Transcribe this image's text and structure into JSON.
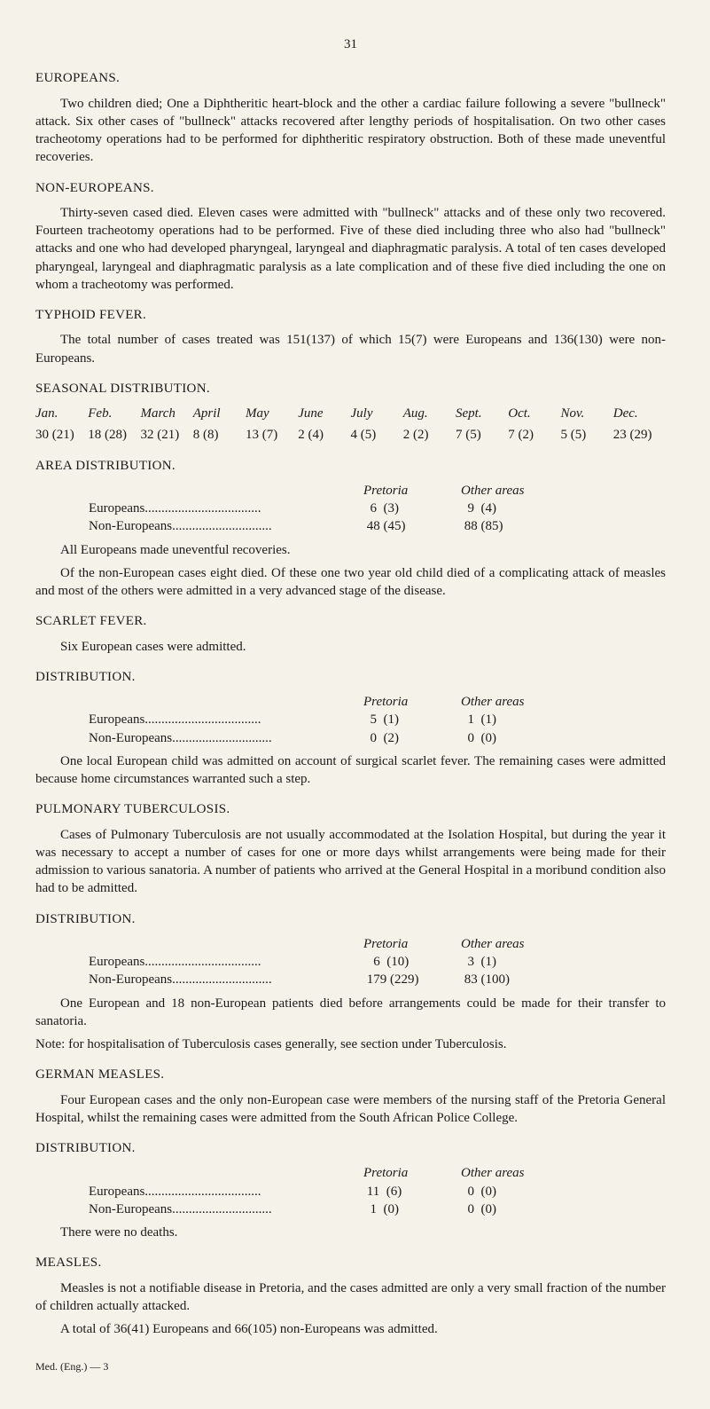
{
  "page_number": "31",
  "sections": {
    "europeans": {
      "head": "EUROPEANS.",
      "para": "Two children died; One a Diphtheritic heart-block and the other a cardiac failure following a severe \"bullneck\" attack. Six other cases of \"bullneck\" attacks recovered after lengthy periods of hospitalisation. On two other cases tracheotomy operations had to be performed for diphtheritic respiratory obstruction. Both of these made uneventful recoveries."
    },
    "non_europeans": {
      "head": "NON-EUROPEANS.",
      "para": "Thirty-seven cased died. Eleven cases were admitted with \"bullneck\" attacks and of these only two recovered. Fourteen tracheotomy operations had to be performed. Five of these died including three who also had \"bullneck\" attacks and one who had developed pharyngeal, laryngeal and diaphragmatic paralysis. A total of ten cases developed pharyngeal, laryngeal and diaphragmatic paralysis as a late complication and of these five died including the one on whom a tracheotomy was performed."
    },
    "typhoid": {
      "head": "TYPHOID FEVER.",
      "para": "The total number of cases treated was 151(137) of which 15(7) were Europeans and 136(130) were non-Europeans."
    },
    "seasonal": {
      "head": "SEASONAL DISTRIBUTION.",
      "months": [
        "Jan.",
        "Feb.",
        "March",
        "April",
        "May",
        "June",
        "July",
        "Aug.",
        "Sept.",
        "Oct.",
        "Nov.",
        "Dec."
      ],
      "values": [
        "30 (21)",
        "18 (28)",
        "32 (21)",
        "8  (8)",
        "13  (7)",
        "2  (4)",
        "4  (5)",
        "2  (2)",
        "7  (5)",
        "7  (2)",
        "5  (5)",
        "23 (29)"
      ]
    },
    "area": {
      "head": "AREA DISTRIBUTION.",
      "col_pretoria": "Pretoria",
      "col_other": "Other areas",
      "rows": [
        {
          "label": "Europeans...................................",
          "c1": "  6  (3)",
          "c2": "  9  (4)"
        },
        {
          "label": "Non-Europeans..............................",
          "c1": " 48 (45)",
          "c2": " 88 (85)"
        }
      ],
      "note1": "All Europeans made uneventful recoveries.",
      "note2": "Of the non-European cases eight died. Of these one two year old child died of a complicating attack of measles and most of the others were admitted in a very advanced stage of the disease."
    },
    "scarlet": {
      "head": "SCARLET FEVER.",
      "line": "Six European cases were admitted.",
      "dist_head": "DISTRIBUTION.",
      "rows": [
        {
          "label": "Europeans...................................",
          "c1": "  5  (1)",
          "c2": "  1  (1)"
        },
        {
          "label": "Non-Europeans..............................",
          "c1": "  0  (2)",
          "c2": "  0  (0)"
        }
      ],
      "note": "One local European child was admitted on account of surgical scarlet fever. The remaining cases were admitted because home circumstances warranted such a step."
    },
    "pulmonary": {
      "head": "PULMONARY TUBERCULOSIS.",
      "para": "Cases of Pulmonary Tuberculosis are not usually accommodated at the Isolation Hospital, but during the year it was necessary to accept a number of cases for one or more days whilst arrangements were being made for their admission to various sanatoria. A number of patients who arrived at the General Hospital in a moribund condition also had to be admitted.",
      "dist_head": "DISTRIBUTION.",
      "rows": [
        {
          "label": "Europeans...................................",
          "c1": "   6  (10)",
          "c2": "  3  (1)"
        },
        {
          "label": "Non-Europeans..............................",
          "c1": " 179 (229)",
          "c2": " 83 (100)"
        }
      ],
      "note1": "One European and 18 non-European patients died before arrangements could be made for their transfer to sanatoria.",
      "note2": "Note: for hospitalisation of Tuberculosis cases generally, see section under Tuberculosis."
    },
    "german": {
      "head": "GERMAN MEASLES.",
      "para": "Four European cases and the only non-European case were members of the nursing staff of the Pretoria General Hospital, whilst the remaining cases were admitted from the South African Police College.",
      "dist_head": "DISTRIBUTION.",
      "rows": [
        {
          "label": "Europeans...................................",
          "c1": " 11  (6)",
          "c2": "  0  (0)"
        },
        {
          "label": "Non-Europeans..............................",
          "c1": "  1  (0)",
          "c2": "  0  (0)"
        }
      ],
      "note": "There were no deaths."
    },
    "measles": {
      "head": "MEASLES.",
      "para": "Measles is not a notifiable disease in Pretoria, and the cases admitted are only a very small fraction of the number of children actually attacked.",
      "line": "A total of 36(41) Europeans and 66(105) non-Europeans was admitted."
    }
  },
  "footer": "Med. (Eng.) — 3"
}
